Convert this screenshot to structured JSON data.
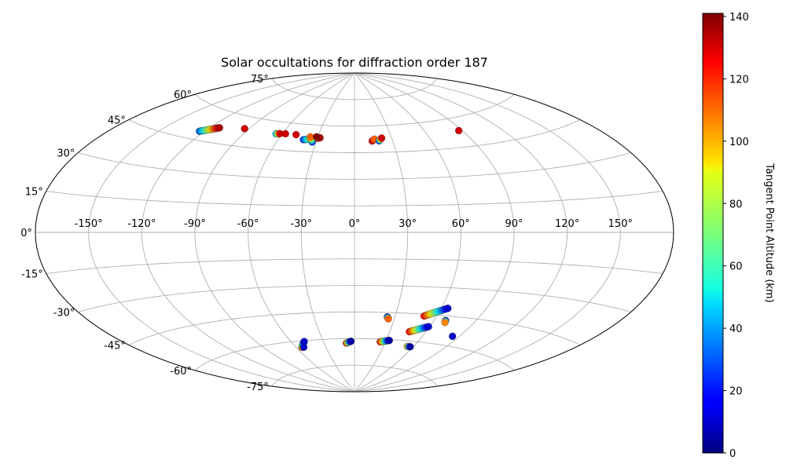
{
  "chart_data": {
    "type": "scatter",
    "projection": "aitoff",
    "title": "Solar occultations for diffraction order 187",
    "xlabel": "",
    "ylabel": "",
    "grid": true,
    "x_ticks": [
      -150,
      -120,
      -90,
      -60,
      -30,
      0,
      30,
      60,
      90,
      120,
      150
    ],
    "x_tick_labels": [
      "-150°",
      "-120°",
      "-90°",
      "-60°",
      "-30°",
      "0°",
      "30°",
      "60°",
      "90°",
      "120°",
      "150°"
    ],
    "y_ticks": [
      75,
      60,
      45,
      30,
      15,
      0,
      -15,
      -30,
      -45,
      -60,
      -75
    ],
    "y_tick_labels": [
      "75°",
      "60°",
      "45°",
      "30°",
      "15°",
      "0°",
      "-15°",
      "-30°",
      "-45°",
      "-60°",
      "-75°"
    ],
    "colorbar": {
      "label": "Tangent Point Altitude (km)",
      "colormap": "jet",
      "range": [
        0,
        141
      ],
      "ticks": [
        0,
        20,
        40,
        60,
        80,
        100,
        120,
        140
      ],
      "tick_labels": [
        "0",
        "20",
        "40",
        "60",
        "80",
        "100",
        "120",
        "140"
      ]
    },
    "tracks": [
      {
        "lon0": -123.5,
        "lat0": 49.0,
        "alt0": 30,
        "lon1": -113.0,
        "lat1": 52.3,
        "alt1": 135,
        "n": 18
      },
      {
        "lon0": -93.5,
        "lat0": 54.0,
        "alt0": 130,
        "lon1": -93.5,
        "lat1": 54.0,
        "alt1": 130,
        "n": 1
      },
      {
        "lon0": -65.0,
        "lat0": 53.5,
        "alt0": 45,
        "lon1": -62.0,
        "lat1": 53.8,
        "alt1": 130,
        "n": 4
      },
      {
        "lon0": -57.5,
        "lat0": 54.0,
        "alt0": 130,
        "lon1": -57.5,
        "lat1": 54.0,
        "alt1": 130,
        "n": 1
      },
      {
        "lon0": -48.5,
        "lat0": 54.0,
        "alt0": 130,
        "lon1": -48.5,
        "lat1": 54.0,
        "alt1": 130,
        "n": 1
      },
      {
        "lon0": -40.5,
        "lat0": 51.5,
        "alt0": 25,
        "lon1": -28.0,
        "lat1": 53.0,
        "alt1": 135,
        "n": 14
      },
      {
        "lon0": -33.0,
        "lat0": 50.5,
        "alt0": 20,
        "lon1": -36.0,
        "lat1": 53.3,
        "alt1": 110,
        "n": 6
      },
      {
        "lon0": -31.0,
        "lat0": 53.5,
        "alt0": 140,
        "lon1": -31.0,
        "lat1": 53.5,
        "alt1": 140,
        "n": 1
      },
      {
        "lon0": 14.0,
        "lat0": 51.5,
        "alt0": 130,
        "lon1": 16.0,
        "lat1": 52.5,
        "alt1": 110,
        "n": 3
      },
      {
        "lon0": 19.5,
        "lat0": 51.5,
        "alt0": 25,
        "lon1": 22.0,
        "lat1": 53.0,
        "alt1": 130,
        "n": 4
      },
      {
        "lon0": 87.5,
        "lat0": 53.5,
        "alt0": 130,
        "lon1": 87.5,
        "lat1": 53.5,
        "alt1": 130,
        "n": 1
      },
      {
        "lon0": 24.5,
        "lat0": -47.5,
        "alt0": 10,
        "lon1": 25.5,
        "lat1": -48.5,
        "alt1": 110,
        "n": 3
      },
      {
        "lon0": 51.0,
        "lat0": -46.0,
        "alt0": 125,
        "lon1": 64.5,
        "lat1": -41.0,
        "alt1": 10,
        "n": 18
      },
      {
        "lon0": 46.5,
        "lat0": -55.0,
        "alt0": 125,
        "lon1": 59.0,
        "lat1": -51.5,
        "alt1": 10,
        "n": 14
      },
      {
        "lon0": 68.5,
        "lat0": -47.5,
        "alt0": 10,
        "lon1": 69.0,
        "lat1": -48.5,
        "alt1": 105,
        "n": 3
      },
      {
        "lon0": 84.5,
        "lat0": -55.0,
        "alt0": 10,
        "lon1": 84.5,
        "lat1": -55.0,
        "alt1": 10,
        "n": 1
      },
      {
        "lon0": 25.0,
        "lat0": -61.5,
        "alt0": 125,
        "lon1": 33.0,
        "lat1": -60.5,
        "alt1": 5,
        "n": 10
      },
      {
        "lon0": 54.0,
        "lat0": -63.0,
        "alt0": 100,
        "lon1": 57.0,
        "lat1": -63.0,
        "alt1": 5,
        "n": 4
      },
      {
        "lon0": -8.0,
        "lat0": -62.5,
        "alt0": 125,
        "lon1": -3.5,
        "lat1": -61.5,
        "alt1": 5,
        "n": 7
      },
      {
        "lon0": -54.5,
        "lat0": -63.5,
        "alt0": 110,
        "lon1": -48.0,
        "lat1": -60.5,
        "alt1": 10,
        "n": 8
      },
      {
        "lon0": -52.5,
        "lat0": -63.5,
        "alt0": 10,
        "lon1": -52.5,
        "lat1": -63.5,
        "alt1": 10,
        "n": 1
      }
    ]
  }
}
